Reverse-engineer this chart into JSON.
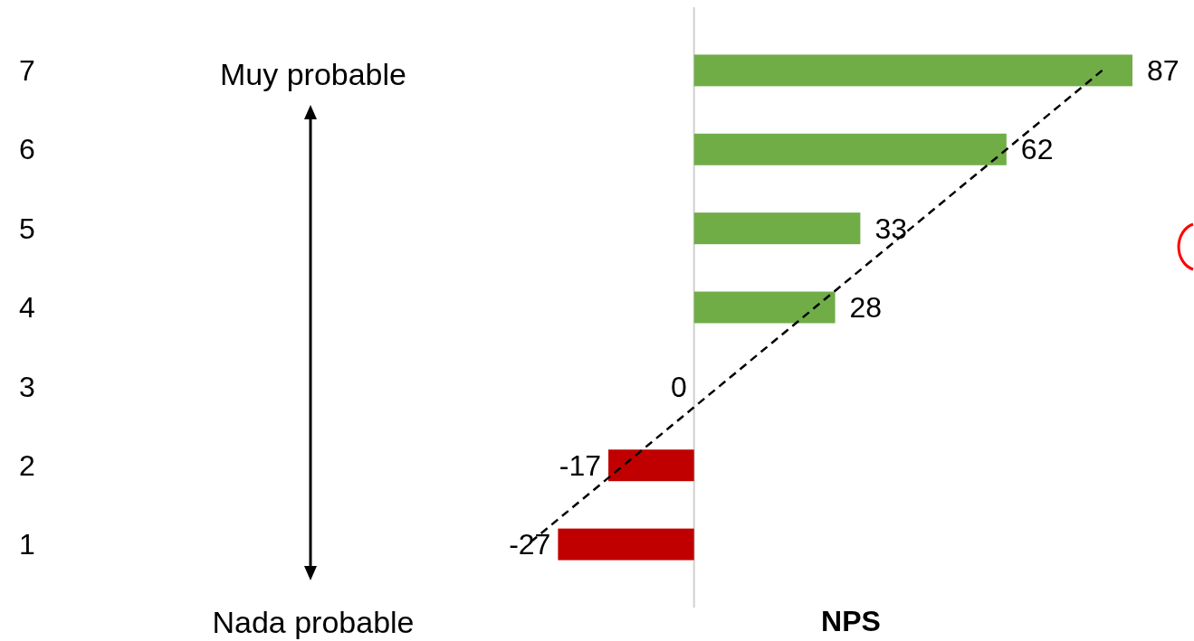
{
  "chart_data": {
    "type": "bar",
    "orientation": "horizontal",
    "xlabel": "NPS",
    "categories": [
      "7",
      "6",
      "5",
      "4",
      "3",
      "2",
      "1"
    ],
    "tick_labels": "y",
    "series": [
      {
        "values": [
          87,
          62,
          33,
          28,
          0,
          -17,
          -27
        ],
        "value_labels": [
          "87",
          "62",
          "33",
          "28",
          "0",
          "-17",
          "-27"
        ],
        "colors": [
          "#70ad47",
          "#70ad47",
          "#70ad47",
          "#70ad47",
          "#70ad47",
          "#c00000",
          "#c00000"
        ]
      },
      {
        "type": "line",
        "color": "#000000",
        "line_style": "dashed",
        "marker": "none",
        "values": [
          81,
          62,
          43,
          24,
          5,
          -14,
          -33
        ]
      }
    ],
    "annotations": [
      "Muy probable",
      "Nada probable"
    ]
  }
}
